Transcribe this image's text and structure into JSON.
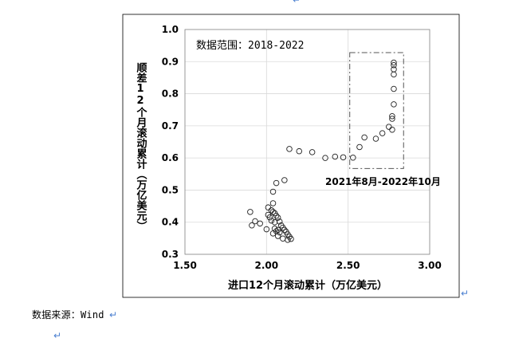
{
  "chart_data": {
    "type": "scatter",
    "title": "",
    "xlabel": "进口12个月滚动累计（万亿美元）",
    "ylabel": "顺差12个月滚动累计（万亿美元）",
    "xlim": [
      1.5,
      3.0
    ],
    "ylim": [
      0.3,
      1.0
    ],
    "xticks": [
      "1.50",
      "2.00",
      "2.50",
      "3.00"
    ],
    "yticks": [
      "0.3",
      "0.4",
      "0.5",
      "0.6",
      "0.7",
      "0.8",
      "0.9",
      "1.0"
    ],
    "grid": true,
    "inset_text": "数据范围：2018-2022",
    "annotation": {
      "label": "2021年8月-2022年10月",
      "box_x": [
        2.51,
        2.84
      ],
      "box_y": [
        0.567,
        0.928
      ]
    },
    "points": [
      [
        1.9,
        0.432
      ],
      [
        1.91,
        0.39
      ],
      [
        1.93,
        0.403
      ],
      [
        1.96,
        0.396
      ],
      [
        2.0,
        0.378
      ],
      [
        2.01,
        0.446
      ],
      [
        2.01,
        0.423
      ],
      [
        2.02,
        0.415
      ],
      [
        2.03,
        0.437
      ],
      [
        2.04,
        0.459
      ],
      [
        2.04,
        0.432
      ],
      [
        2.05,
        0.428
      ],
      [
        2.03,
        0.405
      ],
      [
        2.05,
        0.4
      ],
      [
        2.06,
        0.42
      ],
      [
        2.07,
        0.414
      ],
      [
        2.08,
        0.402
      ],
      [
        2.09,
        0.39
      ],
      [
        2.1,
        0.383
      ],
      [
        2.11,
        0.376
      ],
      [
        2.12,
        0.37
      ],
      [
        2.13,
        0.362
      ],
      [
        2.14,
        0.355
      ],
      [
        2.15,
        0.348
      ],
      [
        2.13,
        0.345
      ],
      [
        2.1,
        0.349
      ],
      [
        2.07,
        0.357
      ],
      [
        2.04,
        0.365
      ],
      [
        2.05,
        0.38
      ],
      [
        2.06,
        0.372
      ],
      [
        2.07,
        0.376
      ],
      [
        2.08,
        0.368
      ],
      [
        2.04,
        0.495
      ],
      [
        2.06,
        0.522
      ],
      [
        2.11,
        0.531
      ],
      [
        2.14,
        0.628
      ],
      [
        2.2,
        0.621
      ],
      [
        2.28,
        0.618
      ],
      [
        2.36,
        0.6
      ],
      [
        2.42,
        0.604
      ],
      [
        2.47,
        0.602
      ],
      [
        2.53,
        0.601
      ],
      [
        2.57,
        0.634
      ],
      [
        2.6,
        0.664
      ],
      [
        2.67,
        0.66
      ],
      [
        2.71,
        0.677
      ],
      [
        2.75,
        0.697
      ],
      [
        2.77,
        0.688
      ],
      [
        2.77,
        0.73
      ],
      [
        2.77,
        0.722
      ],
      [
        2.78,
        0.767
      ],
      [
        2.78,
        0.815
      ],
      [
        2.78,
        0.86
      ],
      [
        2.78,
        0.876
      ],
      [
        2.78,
        0.897
      ],
      [
        2.78,
        0.889
      ]
    ]
  },
  "source_note": "数据来源：Wind"
}
